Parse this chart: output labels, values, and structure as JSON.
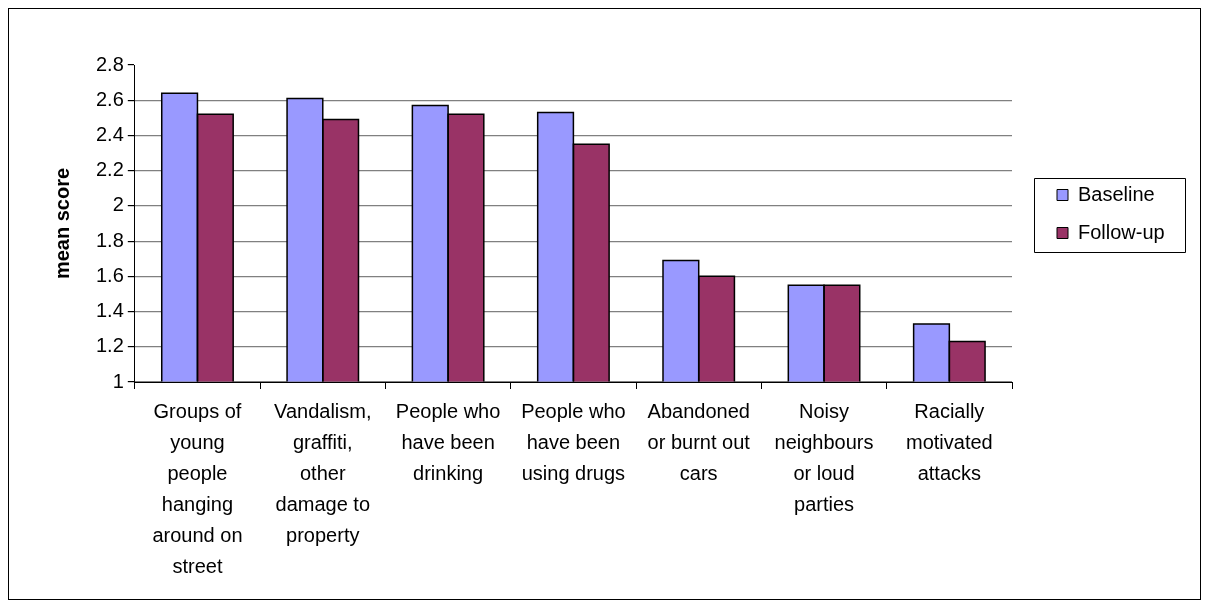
{
  "chart_data": {
    "type": "bar",
    "ylabel": "mean score",
    "categories": [
      "Groups of young people hanging around on street",
      "Vandalism, graffiti, other damage to property",
      "People who have been drinking",
      "People who have been using drugs",
      "Abandoned or burnt out cars",
      "Noisy neighbours or loud parties",
      "Racially motivated attacks"
    ],
    "series": [
      {
        "name": "Baseline",
        "color": "#9999ff",
        "values": [
          2.64,
          2.61,
          2.57,
          2.53,
          1.69,
          1.55,
          1.33
        ]
      },
      {
        "name": "Follow-up",
        "color": "#993366",
        "values": [
          2.52,
          2.49,
          2.52,
          2.35,
          1.6,
          1.55,
          1.23
        ]
      }
    ],
    "ylim": [
      1,
      2.8
    ],
    "yticks": [
      1,
      1.2,
      1.4,
      1.6,
      1.8,
      2,
      2.2,
      2.4,
      2.6,
      2.8
    ],
    "grid": "y",
    "legend": "right"
  }
}
